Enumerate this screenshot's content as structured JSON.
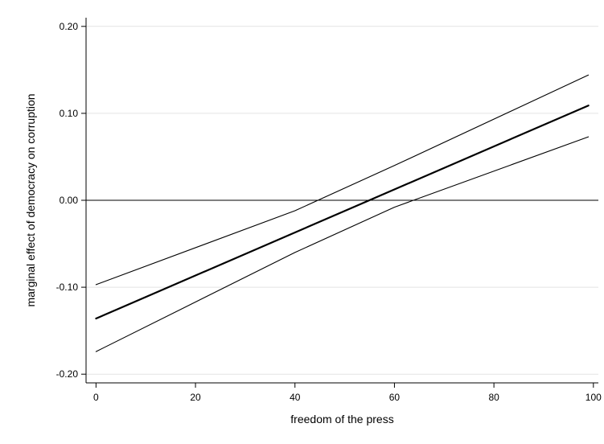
{
  "chart_data": {
    "type": "line",
    "title": "",
    "xlabel": "freedom of the press",
    "ylabel": "marginal effect of democracy on corruption",
    "xlim": [
      -2,
      101
    ],
    "ylim": [
      -0.21,
      0.21
    ],
    "x_ticks": [
      0,
      20,
      40,
      60,
      80,
      100
    ],
    "x_tick_labels": [
      "0",
      "20",
      "40",
      "60",
      "80",
      "100"
    ],
    "y_ticks": [
      -0.2,
      -0.1,
      0.0,
      0.1,
      0.2
    ],
    "y_tick_labels": [
      "-0.20",
      "-0.10",
      "0.00",
      "0.10",
      "0.20"
    ],
    "grid": "horizontal",
    "reference_line_y": 0.0,
    "legend": "none",
    "series": [
      {
        "role": "estimate",
        "x": [
          0,
          99
        ],
        "values": [
          -0.136,
          0.109
        ]
      },
      {
        "role": "upper-bound",
        "x": [
          0,
          40,
          60,
          99
        ],
        "values": [
          -0.097,
          -0.012,
          0.04,
          0.144
        ]
      },
      {
        "role": "lower-bound",
        "x": [
          0,
          40,
          60,
          99
        ],
        "values": [
          -0.174,
          -0.06,
          -0.008,
          0.073
        ]
      }
    ]
  }
}
